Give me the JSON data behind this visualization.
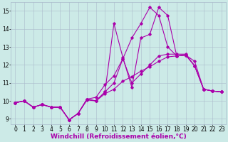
{
  "bg_color": "#cceae7",
  "grid_color": "#aabbcc",
  "line_color": "#aa00aa",
  "xlabel": "Windchill (Refroidissement éolien,°C)",
  "xlim": [
    -0.5,
    23.5
  ],
  "ylim": [
    8.7,
    15.5
  ],
  "yticks": [
    9,
    10,
    11,
    12,
    13,
    14,
    15
  ],
  "xticks": [
    0,
    1,
    2,
    3,
    4,
    5,
    6,
    7,
    8,
    9,
    10,
    11,
    12,
    13,
    14,
    15,
    16,
    17,
    18,
    19,
    20,
    21,
    22,
    23
  ],
  "series1_x": [
    0,
    1,
    2,
    3,
    4,
    5,
    6,
    7,
    8,
    9,
    10,
    11,
    12,
    13,
    14,
    15,
    16,
    17,
    18,
    19,
    20,
    21,
    22,
    23
  ],
  "series1_y": [
    9.9,
    10.0,
    9.65,
    9.8,
    9.65,
    9.65,
    8.95,
    9.3,
    10.05,
    10.0,
    10.4,
    10.65,
    11.1,
    11.35,
    11.65,
    11.9,
    12.2,
    12.45,
    12.5,
    12.55,
    12.2,
    10.65,
    10.55,
    10.5
  ],
  "series2_x": [
    0,
    1,
    2,
    3,
    4,
    5,
    6,
    7,
    8,
    9,
    10,
    11,
    12,
    13,
    14,
    15,
    16,
    17,
    18,
    19,
    20,
    21,
    22,
    23
  ],
  "series2_y": [
    9.9,
    10.0,
    9.65,
    9.8,
    9.65,
    9.65,
    8.95,
    9.3,
    10.1,
    10.2,
    10.9,
    11.4,
    12.35,
    11.0,
    11.5,
    12.0,
    12.5,
    12.6,
    12.6,
    12.6,
    11.95,
    10.65,
    10.55,
    10.5
  ],
  "series3_x": [
    0,
    1,
    2,
    3,
    4,
    5,
    6,
    7,
    8,
    9,
    10,
    11,
    12,
    13,
    14,
    15,
    16,
    17,
    18,
    19,
    20,
    21,
    22,
    23
  ],
  "series3_y": [
    9.9,
    10.0,
    9.65,
    9.8,
    9.65,
    9.65,
    8.95,
    9.3,
    10.1,
    10.0,
    10.5,
    14.3,
    12.4,
    10.75,
    13.5,
    13.7,
    15.2,
    14.75,
    12.5,
    12.55,
    11.95,
    10.65,
    10.55,
    10.5
  ],
  "series4_x": [
    0,
    1,
    2,
    3,
    4,
    5,
    6,
    7,
    8,
    9,
    10,
    11,
    12,
    13,
    14,
    15,
    16,
    17,
    18,
    19,
    20,
    21,
    22,
    23
  ],
  "series4_y": [
    9.9,
    10.0,
    9.65,
    9.8,
    9.65,
    9.65,
    8.95,
    9.3,
    10.1,
    10.0,
    10.5,
    11.0,
    12.35,
    13.5,
    14.3,
    15.2,
    14.75,
    13.0,
    12.5,
    12.55,
    11.95,
    10.65,
    10.55,
    10.5
  ],
  "marker": "D",
  "markersize": 1.8,
  "linewidth": 0.8,
  "xlabel_fontsize": 6.5,
  "tick_fontsize": 5.5
}
